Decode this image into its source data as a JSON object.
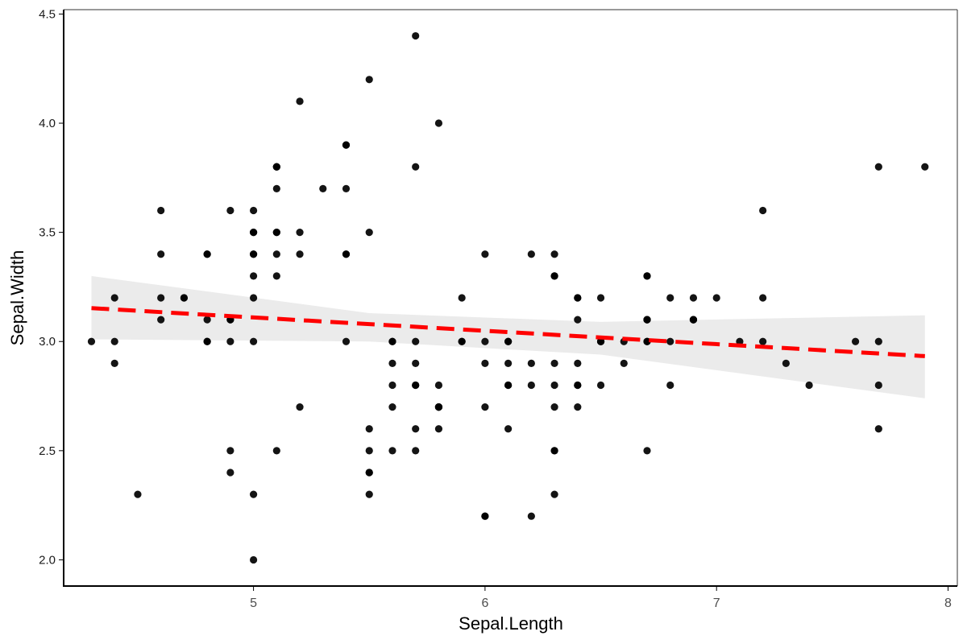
{
  "chart_data": {
    "type": "scatter",
    "xlabel": "Sepal.Length",
    "ylabel": "Sepal.Width",
    "xlim": [
      4.18,
      8.04
    ],
    "ylim": [
      1.88,
      4.52
    ],
    "x_ticks": [
      5,
      6,
      7,
      8
    ],
    "y_ticks": [
      2.0,
      2.5,
      3.0,
      3.5,
      4.0,
      4.5
    ],
    "x_tick_labels": [
      "5",
      "6",
      "7",
      "8"
    ],
    "y_tick_labels": [
      "2.0",
      "2.5",
      "3.0",
      "3.5",
      "4.0",
      "4.5"
    ],
    "grid": false,
    "series": [
      {
        "points": [
          [
            5.1,
            3.5
          ],
          [
            4.9,
            3.0
          ],
          [
            4.7,
            3.2
          ],
          [
            4.6,
            3.1
          ],
          [
            5.0,
            3.6
          ],
          [
            5.4,
            3.9
          ],
          [
            4.6,
            3.4
          ],
          [
            5.0,
            3.4
          ],
          [
            4.4,
            2.9
          ],
          [
            4.9,
            3.1
          ],
          [
            5.4,
            3.7
          ],
          [
            4.8,
            3.4
          ],
          [
            4.8,
            3.0
          ],
          [
            4.3,
            3.0
          ],
          [
            5.8,
            4.0
          ],
          [
            5.7,
            4.4
          ],
          [
            5.4,
            3.9
          ],
          [
            5.1,
            3.5
          ],
          [
            5.7,
            3.8
          ],
          [
            5.1,
            3.8
          ],
          [
            5.4,
            3.4
          ],
          [
            5.1,
            3.7
          ],
          [
            4.6,
            3.6
          ],
          [
            5.1,
            3.3
          ],
          [
            4.8,
            3.4
          ],
          [
            5.0,
            3.0
          ],
          [
            5.0,
            3.4
          ],
          [
            5.2,
            3.5
          ],
          [
            5.2,
            3.4
          ],
          [
            4.7,
            3.2
          ],
          [
            4.8,
            3.1
          ],
          [
            5.4,
            3.4
          ],
          [
            5.2,
            4.1
          ],
          [
            5.5,
            4.2
          ],
          [
            4.9,
            3.1
          ],
          [
            5.0,
            3.2
          ],
          [
            5.5,
            3.5
          ],
          [
            4.9,
            3.6
          ],
          [
            4.4,
            3.0
          ],
          [
            5.1,
            3.4
          ],
          [
            5.0,
            3.5
          ],
          [
            4.5,
            2.3
          ],
          [
            4.4,
            3.2
          ],
          [
            5.0,
            3.5
          ],
          [
            5.1,
            3.8
          ],
          [
            4.8,
            3.0
          ],
          [
            5.1,
            3.8
          ],
          [
            4.6,
            3.2
          ],
          [
            5.3,
            3.7
          ],
          [
            5.0,
            3.3
          ],
          [
            7.0,
            3.2
          ],
          [
            6.4,
            3.2
          ],
          [
            6.9,
            3.1
          ],
          [
            5.5,
            2.3
          ],
          [
            6.5,
            2.8
          ],
          [
            5.7,
            2.8
          ],
          [
            6.3,
            3.3
          ],
          [
            4.9,
            2.4
          ],
          [
            6.6,
            2.9
          ],
          [
            5.2,
            2.7
          ],
          [
            5.0,
            2.0
          ],
          [
            5.9,
            3.0
          ],
          [
            6.0,
            2.2
          ],
          [
            6.1,
            2.9
          ],
          [
            5.6,
            2.9
          ],
          [
            6.7,
            3.1
          ],
          [
            5.6,
            3.0
          ],
          [
            5.8,
            2.7
          ],
          [
            6.2,
            2.2
          ],
          [
            5.6,
            2.5
          ],
          [
            5.9,
            3.2
          ],
          [
            6.1,
            2.8
          ],
          [
            6.3,
            2.5
          ],
          [
            6.1,
            2.8
          ],
          [
            6.4,
            2.9
          ],
          [
            6.6,
            3.0
          ],
          [
            6.8,
            2.8
          ],
          [
            6.7,
            3.0
          ],
          [
            6.0,
            2.9
          ],
          [
            5.7,
            2.6
          ],
          [
            5.5,
            2.4
          ],
          [
            5.5,
            2.4
          ],
          [
            5.8,
            2.7
          ],
          [
            6.0,
            2.7
          ],
          [
            5.4,
            3.0
          ],
          [
            6.0,
            3.4
          ],
          [
            6.7,
            3.1
          ],
          [
            6.3,
            2.3
          ],
          [
            5.6,
            3.0
          ],
          [
            5.5,
            2.5
          ],
          [
            5.5,
            2.6
          ],
          [
            6.1,
            3.0
          ],
          [
            5.8,
            2.6
          ],
          [
            5.0,
            2.3
          ],
          [
            5.6,
            2.7
          ],
          [
            5.7,
            3.0
          ],
          [
            5.7,
            2.9
          ],
          [
            6.2,
            2.9
          ],
          [
            5.1,
            2.5
          ],
          [
            5.7,
            2.8
          ],
          [
            6.3,
            3.3
          ],
          [
            5.8,
            2.7
          ],
          [
            7.1,
            3.0
          ],
          [
            6.3,
            2.9
          ],
          [
            6.5,
            3.0
          ],
          [
            7.6,
            3.0
          ],
          [
            4.9,
            2.5
          ],
          [
            7.3,
            2.9
          ],
          [
            6.7,
            2.5
          ],
          [
            7.2,
            3.6
          ],
          [
            6.5,
            3.2
          ],
          [
            6.4,
            2.7
          ],
          [
            6.8,
            3.0
          ],
          [
            5.7,
            2.5
          ],
          [
            5.8,
            2.8
          ],
          [
            6.4,
            3.2
          ],
          [
            6.5,
            3.0
          ],
          [
            7.7,
            3.8
          ],
          [
            7.7,
            2.6
          ],
          [
            6.0,
            2.2
          ],
          [
            6.9,
            3.2
          ],
          [
            5.6,
            2.8
          ],
          [
            7.7,
            2.8
          ],
          [
            6.3,
            2.7
          ],
          [
            6.7,
            3.3
          ],
          [
            7.2,
            3.2
          ],
          [
            6.2,
            2.8
          ],
          [
            6.1,
            3.0
          ],
          [
            6.4,
            2.8
          ],
          [
            7.2,
            3.0
          ],
          [
            7.4,
            2.8
          ],
          [
            7.9,
            3.8
          ],
          [
            6.4,
            2.8
          ],
          [
            6.3,
            2.8
          ],
          [
            6.1,
            2.6
          ],
          [
            7.7,
            3.0
          ],
          [
            6.3,
            3.4
          ],
          [
            6.4,
            3.1
          ],
          [
            6.0,
            3.0
          ],
          [
            6.9,
            3.1
          ],
          [
            6.7,
            3.1
          ],
          [
            6.9,
            3.1
          ],
          [
            5.8,
            2.7
          ],
          [
            6.8,
            3.2
          ],
          [
            6.7,
            3.3
          ],
          [
            6.7,
            3.0
          ],
          [
            6.3,
            2.5
          ],
          [
            6.5,
            3.0
          ],
          [
            6.2,
            3.4
          ],
          [
            5.9,
            3.0
          ]
        ],
        "color": "#000000"
      }
    ],
    "trend_line": {
      "method": "linear",
      "x_range": [
        4.3,
        7.9
      ],
      "y_values": [
        3.153,
        2.933
      ],
      "color": "#ff0000",
      "style": "dashed"
    },
    "confidence_band": {
      "x": [
        4.3,
        5.5,
        6.5,
        7.9
      ],
      "upper": [
        3.3,
        3.13,
        3.09,
        3.12
      ],
      "lower": [
        3.01,
        3.0,
        2.94,
        2.74
      ],
      "color": "#ebebeb"
    }
  }
}
